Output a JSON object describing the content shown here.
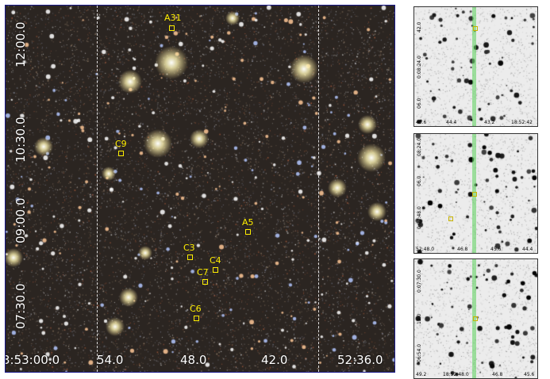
{
  "main_image": {
    "y_ticks": [
      "12:00.0",
      "10:30.0",
      "09:00.0",
      "07:30.0"
    ],
    "x_ticks": [
      "3:53:00.0",
      "54.0",
      "48.0",
      "42.0",
      "52:36.0"
    ],
    "markers": [
      {
        "id": "A31",
        "label": "A31"
      },
      {
        "id": "C9",
        "label": "C9"
      },
      {
        "id": "A5",
        "label": "A5"
      },
      {
        "id": "C3",
        "label": "C3"
      },
      {
        "id": "C4",
        "label": "C4"
      },
      {
        "id": "C7",
        "label": "C7"
      },
      {
        "id": "C6",
        "label": "C6"
      }
    ],
    "marker_color": "#ffee00"
  },
  "insets": [
    {
      "y_ticks": [
        "42.0",
        "0:08:24.0",
        "06.0"
      ],
      "x_ticks": [
        "45.6",
        "44.4",
        "43.2",
        "18:52:42"
      ]
    },
    {
      "y_ticks": [
        "08:24.0",
        "06.0",
        "0:07:48.0"
      ],
      "x_ticks": [
        "52:48.0",
        "46.8",
        "45.6",
        "44.4"
      ]
    },
    {
      "y_ticks": [
        "0:07:30.0",
        "12.0",
        "06:54.0"
      ],
      "x_ticks": [
        "49.2",
        "18:52:48.0",
        "46.8",
        "45.6"
      ]
    }
  ]
}
